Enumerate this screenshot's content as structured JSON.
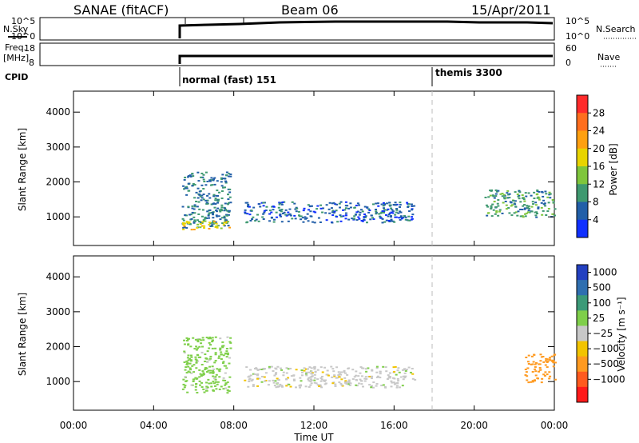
{
  "header": {
    "station": "SANAE (fitACF)",
    "beam": "Beam 06",
    "date": "15/Apr/2011"
  },
  "panels": {
    "nsky_label": "N.Sky",
    "nsky_ticks": [
      "10^5",
      "10^0"
    ],
    "nsearch_label": "N.Search",
    "nsearch_ticks": [
      "10^5",
      "10^0"
    ],
    "freq_label_line1": "Freq.",
    "freq_label_line2": "[MHz]",
    "freq_ticks": [
      "18",
      "8"
    ],
    "nave_label": "Nave",
    "nave_ticks": [
      "60",
      "0"
    ],
    "cpid_label": "CPID",
    "cpid_modes": [
      {
        "label": "normal (fast) 151",
        "start_hour": 5.4
      },
      {
        "label": "themis 3300",
        "start_hour": 18.0
      }
    ]
  },
  "colorbars": {
    "power": {
      "title": "Power [dB]",
      "ticks": [
        "28",
        "24",
        "20",
        "16",
        "12",
        "8",
        "4"
      ],
      "colors": [
        "#ff2b2b",
        "#ff6e1e",
        "#ffa010",
        "#e8d400",
        "#7fc63c",
        "#3f9970",
        "#225fa8",
        "#1030ff"
      ]
    },
    "velocity": {
      "title": "Velocity [m s⁻¹]",
      "ticks": [
        "1000",
        "500",
        "100",
        "25",
        "−25",
        "−100",
        "−500",
        "−1000"
      ],
      "colors": [
        "#2340c0",
        "#2f6fb0",
        "#3c9a78",
        "#7fcf4a",
        "#c8c8c8",
        "#f2c400",
        "#ff9a20",
        "#ff5a1e",
        "#ff1a1a"
      ]
    }
  },
  "chart_data": {
    "type": "heatmap",
    "xlabel": "Time UT",
    "x_ticks": [
      "00:00",
      "04:00",
      "08:00",
      "12:00",
      "16:00",
      "20:00",
      "00:00"
    ],
    "xlim_hours": [
      0,
      24
    ],
    "ylabel": "Slant Range [km]",
    "y_ticks": [
      4000,
      3000,
      2000,
      1000
    ],
    "ylim_km": [
      180,
      4600
    ],
    "panels": [
      {
        "name": "power",
        "colorbar": "Power [dB]",
        "echo_regions": [
          {
            "t0": 5.4,
            "t1": 7.8,
            "r0": 700,
            "r1": 2300,
            "value_db": 8
          },
          {
            "t0": 5.4,
            "t1": 7.8,
            "r0": 650,
            "r1": 900,
            "value_db": 18
          },
          {
            "t0": 8.5,
            "t1": 17.0,
            "r0": 850,
            "r1": 1450,
            "value_db": 6
          },
          {
            "t0": 20.5,
            "t1": 24.0,
            "r0": 1000,
            "r1": 1800,
            "value_db": 10
          }
        ]
      },
      {
        "name": "velocity",
        "colorbar": "Velocity [m s⁻¹]",
        "echo_regions": [
          {
            "t0": 5.4,
            "t1": 7.8,
            "r0": 700,
            "r1": 2300,
            "value_ms": 50
          },
          {
            "t0": 8.5,
            "t1": 17.0,
            "r0": 850,
            "r1": 1450,
            "value_ms": 0
          },
          {
            "t0": 22.5,
            "t1": 24.0,
            "r0": 1000,
            "r1": 1800,
            "value_ms": -400
          }
        ]
      }
    ]
  }
}
